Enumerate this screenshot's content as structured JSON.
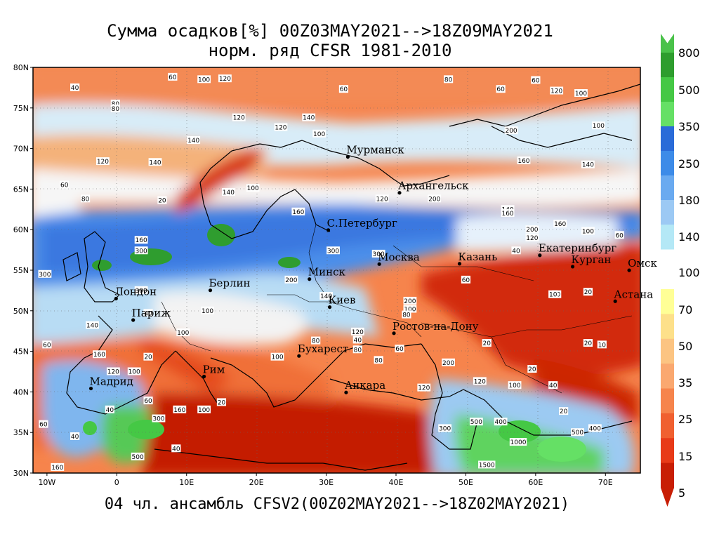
{
  "title": {
    "line1": "Сумма осадков[%] 00Z03MAY2021-->18Z09MAY2021",
    "line2": "норм. ряд CFSR 1981-2010"
  },
  "footer": "04 чл. ансамбль CFSV2(00Z02MAY2021-->18Z02MAY2021)",
  "map": {
    "lon_range": [
      -12,
      75
    ],
    "lat_range": [
      30,
      80
    ],
    "lat_ticks": [
      "80N",
      "75N",
      "70N",
      "65N",
      "60N",
      "55N",
      "50N",
      "45N",
      "40N",
      "35N",
      "30N"
    ],
    "lon_ticks": [
      "10W",
      "0",
      "10E",
      "20E",
      "30E",
      "40E",
      "50E",
      "60E",
      "70E"
    ],
    "cities": [
      {
        "name": "Мурманск",
        "lon": 33.1,
        "lat": 68.97
      },
      {
        "name": "Архангельск",
        "lon": 40.5,
        "lat": 64.54
      },
      {
        "name": "С.Петербург",
        "lon": 30.3,
        "lat": 59.94
      },
      {
        "name": "Москва",
        "lon": 37.6,
        "lat": 55.75
      },
      {
        "name": "Казань",
        "lon": 49.1,
        "lat": 55.8
      },
      {
        "name": "Екатеринбург",
        "lon": 60.6,
        "lat": 56.84
      },
      {
        "name": "Курган",
        "lon": 65.3,
        "lat": 55.44
      },
      {
        "name": "Омск",
        "lon": 73.4,
        "lat": 54.99
      },
      {
        "name": "Астана",
        "lon": 71.4,
        "lat": 51.17
      },
      {
        "name": "Минск",
        "lon": 27.6,
        "lat": 53.9
      },
      {
        "name": "Киев",
        "lon": 30.5,
        "lat": 50.45
      },
      {
        "name": "Берлин",
        "lon": 13.4,
        "lat": 52.52
      },
      {
        "name": "Лондон",
        "lon": -0.1,
        "lat": 51.5
      },
      {
        "name": "Париж",
        "lon": 2.35,
        "lat": 48.86
      },
      {
        "name": "Ростов-на-Дону",
        "lon": 39.7,
        "lat": 47.23
      },
      {
        "name": "Бухарест",
        "lon": 26.1,
        "lat": 44.43
      },
      {
        "name": "Рим",
        "lon": 12.5,
        "lat": 41.9
      },
      {
        "name": "Мадрид",
        "lon": -3.7,
        "lat": 40.42
      },
      {
        "name": "Анкара",
        "lon": 32.85,
        "lat": 39.93
      }
    ],
    "contour_labels": [
      {
        "t": "40",
        "lon": -6,
        "lat": 77.5
      },
      {
        "t": "60",
        "lon": 8,
        "lat": 78.8
      },
      {
        "t": "100",
        "lon": 12.5,
        "lat": 78.5
      },
      {
        "t": "120",
        "lon": 15.5,
        "lat": 78.6
      },
      {
        "t": "60",
        "lon": 32.5,
        "lat": 77.3
      },
      {
        "t": "80",
        "lon": 47.5,
        "lat": 78.5
      },
      {
        "t": "60",
        "lon": 55,
        "lat": 77.3
      },
      {
        "t": "60",
        "lon": 60,
        "lat": 78.4
      },
      {
        "t": "120",
        "lon": 63,
        "lat": 77.1
      },
      {
        "t": "100",
        "lon": 66.5,
        "lat": 76.8
      },
      {
        "t": "80",
        "lon": -0.2,
        "lat": 75.5
      },
      {
        "t": "80",
        "lon": -0.2,
        "lat": 74.9
      },
      {
        "t": "120",
        "lon": 17.5,
        "lat": 73.8
      },
      {
        "t": "140",
        "lon": 27.5,
        "lat": 73.8
      },
      {
        "t": "100",
        "lon": 29,
        "lat": 71.8
      },
      {
        "t": "120",
        "lon": 23.5,
        "lat": 72.6
      },
      {
        "t": "200",
        "lon": 56.5,
        "lat": 72.2
      },
      {
        "t": "100",
        "lon": 69,
        "lat": 72.8
      },
      {
        "t": "140",
        "lon": 11,
        "lat": 71
      },
      {
        "t": "120",
        "lon": -2,
        "lat": 68.4
      },
      {
        "t": "140",
        "lon": 5.5,
        "lat": 68.3
      },
      {
        "t": "160",
        "lon": 58.3,
        "lat": 68.5
      },
      {
        "t": "140",
        "lon": 67.5,
        "lat": 68
      },
      {
        "t": "60",
        "lon": -7.5,
        "lat": 65.5
      },
      {
        "t": "80",
        "lon": -4.5,
        "lat": 63.8
      },
      {
        "t": "20",
        "lon": 6.5,
        "lat": 63.6
      },
      {
        "t": "100",
        "lon": 19.5,
        "lat": 65.1
      },
      {
        "t": "140",
        "lon": 16,
        "lat": 64.6
      },
      {
        "t": "120",
        "lon": 38,
        "lat": 63.8
      },
      {
        "t": "200",
        "lon": 45.5,
        "lat": 63.8
      },
      {
        "t": "160",
        "lon": 26,
        "lat": 62.2
      },
      {
        "t": "140",
        "lon": 56,
        "lat": 62.5
      },
      {
        "t": "160",
        "lon": 56,
        "lat": 62
      },
      {
        "t": "160",
        "lon": 63.5,
        "lat": 60.7
      },
      {
        "t": "200",
        "lon": 59.5,
        "lat": 60
      },
      {
        "t": "120",
        "lon": 59.5,
        "lat": 59
      },
      {
        "t": "100",
        "lon": 67.5,
        "lat": 59.8
      },
      {
        "t": "60",
        "lon": 72,
        "lat": 59.3
      },
      {
        "t": "300",
        "lon": 31,
        "lat": 57.4
      },
      {
        "t": "300",
        "lon": 37.5,
        "lat": 57
      },
      {
        "t": "300",
        "lon": 3.5,
        "lat": 57.4
      },
      {
        "t": "160",
        "lon": 3.5,
        "lat": 58.7
      },
      {
        "t": "40",
        "lon": 57.2,
        "lat": 57.4
      },
      {
        "t": "300",
        "lon": -10.3,
        "lat": 54.5
      },
      {
        "t": "60",
        "lon": 50,
        "lat": 53.8
      },
      {
        "t": "40",
        "lon": 63,
        "lat": 52
      },
      {
        "t": "10",
        "lon": 62.5,
        "lat": 52
      },
      {
        "t": "20",
        "lon": 67.5,
        "lat": 52.3
      },
      {
        "t": "300",
        "lon": 3.5,
        "lat": 52.5
      },
      {
        "t": "200",
        "lon": 25,
        "lat": 53.8
      },
      {
        "t": "140",
        "lon": 30,
        "lat": 51.8
      },
      {
        "t": "200",
        "lon": 42,
        "lat": 51.2
      },
      {
        "t": "100",
        "lon": 42,
        "lat": 50.2
      },
      {
        "t": "80",
        "lon": 41.5,
        "lat": 49.5
      },
      {
        "t": "100",
        "lon": 13,
        "lat": 50
      },
      {
        "t": "40",
        "lon": 4.5,
        "lat": 49.7
      },
      {
        "t": "140",
        "lon": -3.5,
        "lat": 48.2
      },
      {
        "t": "120",
        "lon": 34.5,
        "lat": 47.4
      },
      {
        "t": "100",
        "lon": 9.5,
        "lat": 47.3
      },
      {
        "t": "60",
        "lon": -10,
        "lat": 45.8
      },
      {
        "t": "40",
        "lon": 34.5,
        "lat": 46.4
      },
      {
        "t": "80",
        "lon": 28.5,
        "lat": 46.3
      },
      {
        "t": "20",
        "lon": 53,
        "lat": 46
      },
      {
        "t": "20",
        "lon": 67.5,
        "lat": 46
      },
      {
        "t": "10",
        "lon": 69.5,
        "lat": 45.8
      },
      {
        "t": "60",
        "lon": 40.5,
        "lat": 45.3
      },
      {
        "t": "80",
        "lon": 34.5,
        "lat": 45.2
      },
      {
        "t": "160",
        "lon": -2.5,
        "lat": 44.6
      },
      {
        "t": "20",
        "lon": 4.5,
        "lat": 44.3
      },
      {
        "t": "100",
        "lon": 23,
        "lat": 44.3
      },
      {
        "t": "80",
        "lon": 37.5,
        "lat": 43.9
      },
      {
        "t": "200",
        "lon": 47.5,
        "lat": 43.6
      },
      {
        "t": "20",
        "lon": 59.5,
        "lat": 42.8
      },
      {
        "t": "120",
        "lon": -0.5,
        "lat": 42.5
      },
      {
        "t": "100",
        "lon": 2.5,
        "lat": 42.5
      },
      {
        "t": "40",
        "lon": 62.5,
        "lat": 40.8
      },
      {
        "t": "100",
        "lon": 57,
        "lat": 40.8
      },
      {
        "t": "120",
        "lon": 44,
        "lat": 40.5
      },
      {
        "t": "120",
        "lon": 52,
        "lat": 41.3
      },
      {
        "t": "60",
        "lon": 4.5,
        "lat": 38.9
      },
      {
        "t": "20",
        "lon": 15,
        "lat": 38.7
      },
      {
        "t": "40",
        "lon": -1,
        "lat": 37.8
      },
      {
        "t": "160",
        "lon": 9,
        "lat": 37.8
      },
      {
        "t": "100",
        "lon": 12.5,
        "lat": 37.8
      },
      {
        "t": "20",
        "lon": 64,
        "lat": 37.6
      },
      {
        "t": "300",
        "lon": 6,
        "lat": 36.7
      },
      {
        "t": "500",
        "lon": 51.5,
        "lat": 36.3
      },
      {
        "t": "400",
        "lon": 55,
        "lat": 36.3
      },
      {
        "t": "300",
        "lon": 47,
        "lat": 35.5
      },
      {
        "t": "60",
        "lon": -10.5,
        "lat": 36
      },
      {
        "t": "40",
        "lon": -6,
        "lat": 34.5
      },
      {
        "t": "500",
        "lon": 66,
        "lat": 35
      },
      {
        "t": "400",
        "lon": 68.5,
        "lat": 35.5
      },
      {
        "t": "1000",
        "lon": 57.5,
        "lat": 33.8
      },
      {
        "t": "500",
        "lon": 3,
        "lat": 32
      },
      {
        "t": "40",
        "lon": 8.5,
        "lat": 33
      },
      {
        "t": "160",
        "lon": -8.5,
        "lat": 30.7
      },
      {
        "t": "1500",
        "lon": 53,
        "lat": 31
      }
    ]
  },
  "colorbar": {
    "labels": [
      "800",
      "500",
      "350",
      "250",
      "180",
      "140",
      "100",
      "70",
      "50",
      "35",
      "25",
      "15",
      "5"
    ],
    "upper_colors": [
      "#2e9d2e",
      "#45c845",
      "#65e065",
      "#2a6bd8",
      "#3d8be8",
      "#6aaaf0",
      "#9cc9f4",
      "#b4e8f6"
    ],
    "lower_colors": [
      "#ffff96",
      "#fde08a",
      "#fcc482",
      "#faa870",
      "#f6844c",
      "#f06030",
      "#e83a18",
      "#c81e05"
    ]
  }
}
